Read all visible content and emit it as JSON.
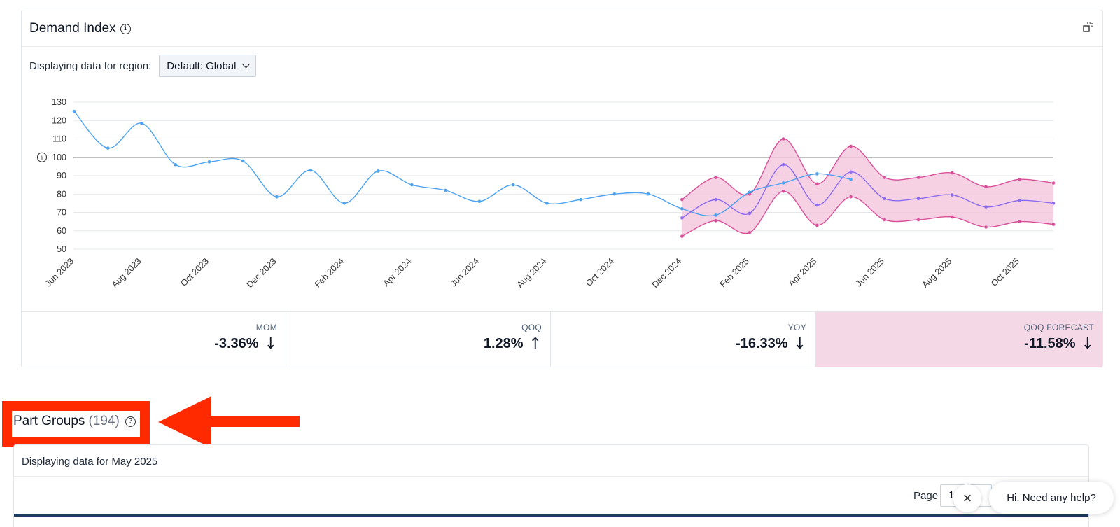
{
  "demand_index": {
    "title": "Demand Index",
    "region_label": "Displaying data for region:",
    "region_value": "Default: Global"
  },
  "chart_data": {
    "type": "line",
    "title": "Demand Index",
    "xlabel": "",
    "ylabel": "",
    "ylim": [
      50,
      130
    ],
    "yticks": [
      50,
      60,
      70,
      80,
      90,
      100,
      110,
      120,
      130
    ],
    "reference_line": 100,
    "x_tick_labels": [
      "Jun 2023",
      "Aug 2023",
      "Oct 2023",
      "Dec 2023",
      "Feb 2024",
      "Apr 2024",
      "Jun 2024",
      "Aug 2024",
      "Oct 2024",
      "Dec 2024",
      "Feb 2025",
      "Apr 2025",
      "Jun 2025",
      "Aug 2025",
      "Oct 2025"
    ],
    "months": [
      "Jun 2023",
      "Jul 2023",
      "Aug 2023",
      "Sep 2023",
      "Oct 2023",
      "Nov 2023",
      "Dec 2023",
      "Jan 2024",
      "Feb 2024",
      "Mar 2024",
      "Apr 2024",
      "May 2024",
      "Jun 2024",
      "Jul 2024",
      "Aug 2024",
      "Sep 2024",
      "Oct 2024",
      "Nov 2024",
      "Dec 2024",
      "Jan 2025",
      "Feb 2025",
      "Mar 2025",
      "Apr 2025",
      "May 2025",
      "Jun 2025",
      "Jul 2025",
      "Aug 2025",
      "Sep 2025",
      "Oct 2025",
      "Nov 2025"
    ],
    "series": [
      {
        "name": "Actual",
        "color": "#4da3f0",
        "start_index": 0,
        "values": [
          125,
          105,
          118.5,
          96,
          97.5,
          98,
          78.5,
          93,
          75,
          92.5,
          85,
          82,
          76,
          85,
          75,
          77,
          80,
          80,
          72,
          68.5,
          81,
          86,
          91,
          88
        ]
      },
      {
        "name": "Forecast",
        "color": "#8b6cf0",
        "start_index": 18,
        "values": [
          67,
          77,
          69.5,
          96,
          74,
          92,
          77.5,
          77.5,
          79.5,
          73,
          76.5,
          75
        ]
      },
      {
        "name": "Forecast upper bound",
        "color": "#d9509a",
        "start_index": 18,
        "values": [
          77,
          89,
          80,
          110,
          85.5,
          106,
          89,
          89,
          91.5,
          84,
          88,
          86
        ]
      },
      {
        "name": "Forecast lower bound",
        "color": "#d9509a",
        "start_index": 18,
        "values": [
          57,
          65.5,
          59,
          81.5,
          63,
          78.5,
          66,
          66,
          67.5,
          62,
          65,
          63.5
        ]
      }
    ],
    "band_color": "#f4c6dc"
  },
  "stats": [
    {
      "label": "MOM",
      "value": "-3.36%",
      "direction": "↓"
    },
    {
      "label": "QOQ",
      "value": "1.28%",
      "direction": "↑"
    },
    {
      "label": "YOY",
      "value": "-16.33%",
      "direction": "↓"
    },
    {
      "label": "QOQ FORECAST",
      "value": "-11.58%",
      "direction": "↓"
    }
  ],
  "part_groups": {
    "title": "Part Groups",
    "count": "(194)",
    "period_text": "Displaying data for May 2025",
    "page_label": "Page",
    "page_value": "1"
  },
  "help_widget": {
    "text": "Hi. Need any help?",
    "close_glyph": "×"
  },
  "annotation": {
    "color": "#ff2a00"
  }
}
